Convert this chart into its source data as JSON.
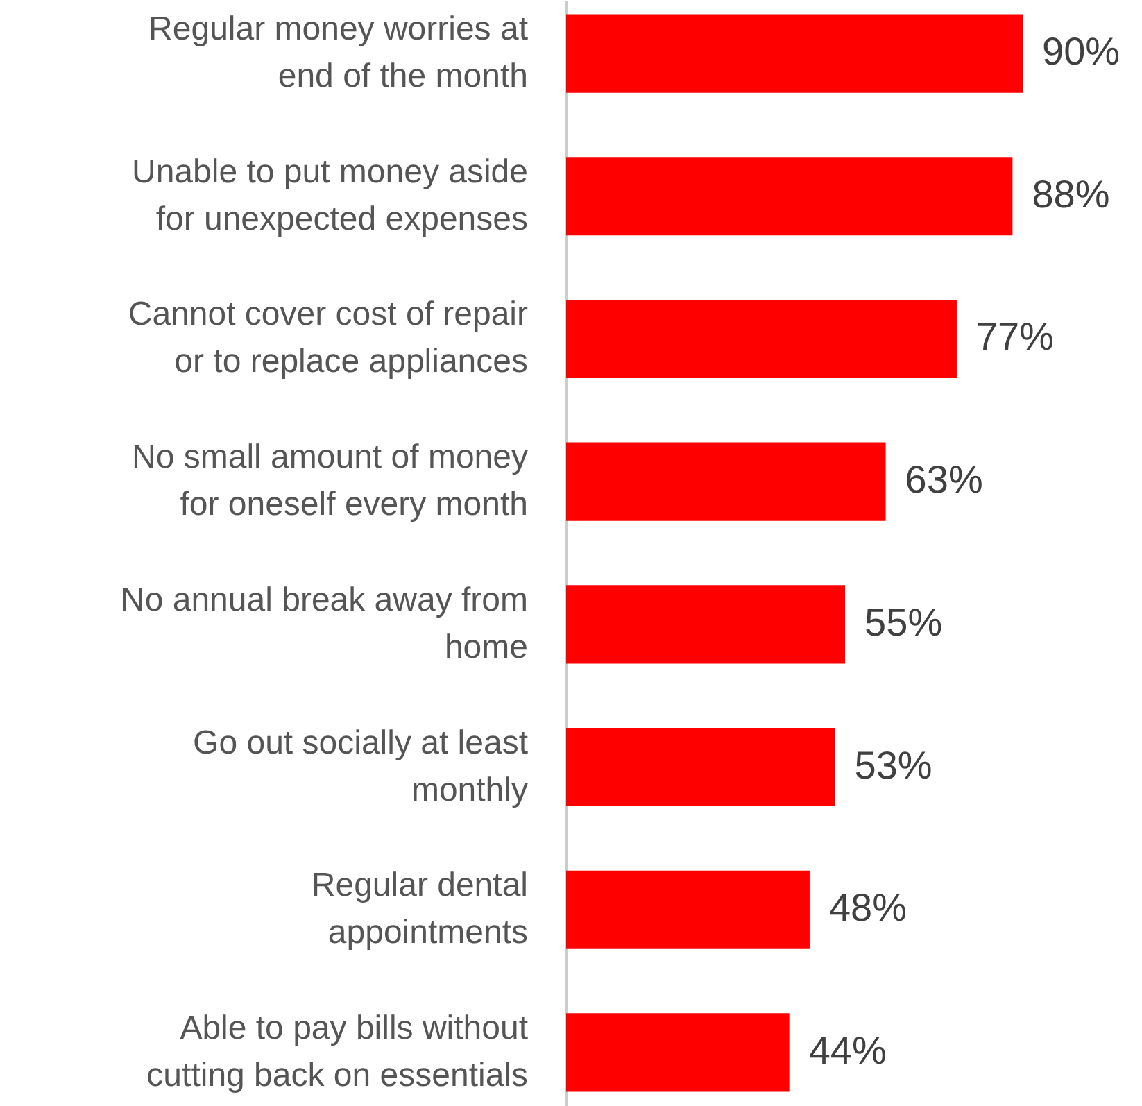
{
  "chart_data": {
    "type": "bar",
    "orientation": "horizontal",
    "categories": [
      "Regular money worries at end of the month",
      "Unable to put money aside for unexpected expenses",
      "Cannot cover cost of repair or to replace appliances",
      "No small amount of money for oneself every month",
      "No annual break away from home",
      "Go out socially at least monthly",
      "Regular dental appointments",
      "Able to pay bills without cutting back on essentials"
    ],
    "values": [
      90,
      88,
      77,
      63,
      55,
      53,
      48,
      44
    ],
    "value_labels": [
      "90%",
      "88%",
      "77%",
      "63%",
      "55%",
      "53%",
      "48%",
      "44%"
    ],
    "color": "#ff0000",
    "grid": false,
    "tick_labels": "y"
  }
}
